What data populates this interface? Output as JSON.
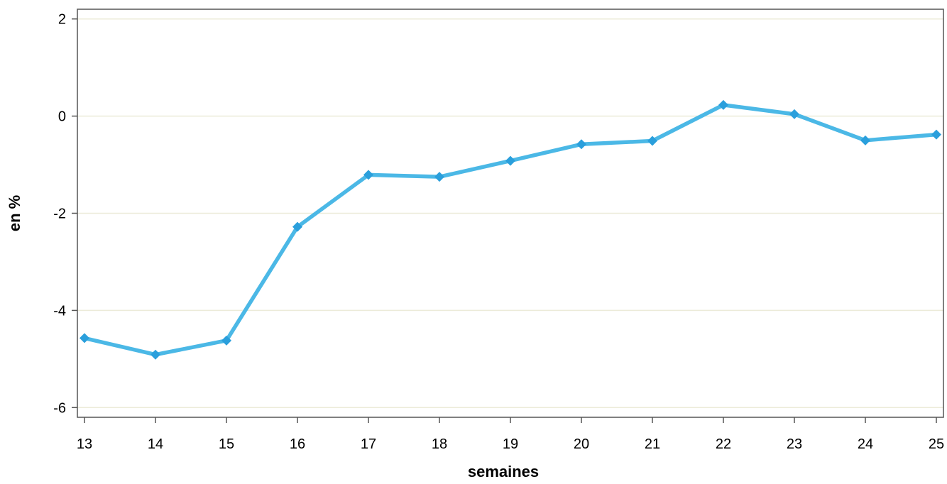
{
  "chart_data": {
    "type": "line",
    "title": "",
    "xlabel": "semaines",
    "ylabel": "en %",
    "x": [
      13,
      14,
      15,
      16,
      17,
      18,
      19,
      20,
      21,
      22,
      23,
      24,
      25
    ],
    "series": [
      {
        "values": [
          -4.57,
          -4.91,
          -4.62,
          -2.28,
          -1.21,
          -1.25,
          -0.92,
          -0.58,
          -0.51,
          0.23,
          0.04,
          -0.5,
          -0.38
        ],
        "color": "#4bb8e6",
        "marker": "diamond",
        "marker_color": "#2a9fdc"
      }
    ],
    "yticks": [
      2,
      0,
      -2,
      -4,
      -6
    ],
    "ytick_labels": [
      "2",
      "0",
      "-2",
      "-4",
      "-6"
    ],
    "xtick_labels": [
      "13",
      "14",
      "15",
      "16",
      "17",
      "18",
      "19",
      "20",
      "21",
      "22",
      "23",
      "24",
      "25"
    ],
    "xlim": [
      12.9,
      25.1
    ],
    "ylim": [
      -6.2,
      2.2
    ],
    "grid": true,
    "grid_color": "#ecebd9",
    "legend": "none"
  }
}
